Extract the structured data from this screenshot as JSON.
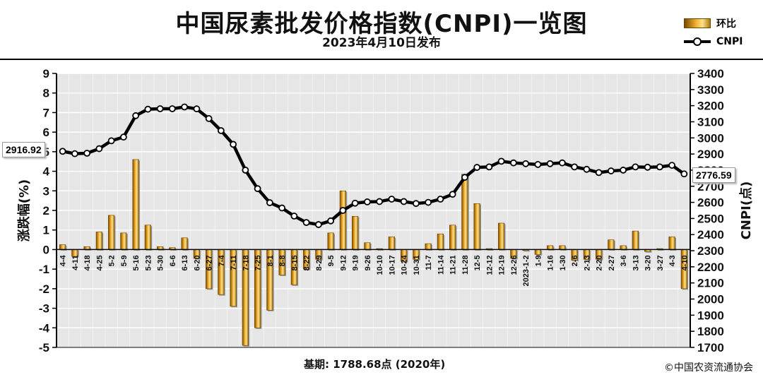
{
  "title": "中国尿素批发价格指数(CNPI)一览图",
  "subtitle": "2023年4月10日发布",
  "legend": {
    "bar_label": "环比",
    "line_label": "CNPI"
  },
  "footer": {
    "base": "基期:   1788.68点  (2020年)",
    "copyright": "©中国农资流通协会"
  },
  "callouts": {
    "first": "2916.92",
    "last": "2776.59"
  },
  "colors": {
    "bar": "#e8a020",
    "line": "#000000",
    "plot_bg": "#e6e6e6"
  },
  "chart_data": {
    "type": "bar+line",
    "x_labels": [
      "4-4",
      "4-11",
      "4-18",
      "4-25",
      "5-2",
      "5-9",
      "5-16",
      "5-23",
      "5-30",
      "6-6",
      "6-13",
      "6-20",
      "6-27",
      "7-4",
      "7-11",
      "7-18",
      "7-25",
      "8-1",
      "8-8",
      "8-15",
      "8-22",
      "8-29",
      "9-5",
      "9-12",
      "9-19",
      "9-26",
      "10-10",
      "10-17",
      "10-24",
      "10-31",
      "11-7",
      "11-14",
      "11-21",
      "11-28",
      "12-5",
      "12-12",
      "12-19",
      "12-26",
      "2023-1-2",
      "1-9",
      "1-16",
      "1-30",
      "2-6",
      "2-13",
      "2-20",
      "2-27",
      "3-6",
      "3-13",
      "3-20",
      "3-27",
      "4-3",
      "4-10"
    ],
    "series": [
      {
        "name": "环比",
        "type": "bar",
        "axis": "left",
        "values": [
          0.25,
          -0.35,
          0.15,
          0.9,
          1.75,
          0.85,
          4.6,
          1.25,
          0.15,
          0.1,
          0.6,
          -0.45,
          -2.0,
          -2.3,
          -2.9,
          -4.9,
          -4.0,
          -3.1,
          -1.3,
          -1.8,
          -1.0,
          -0.5,
          0.85,
          3.0,
          1.7,
          0.35,
          0.05,
          0.65,
          -0.6,
          -0.5,
          0.3,
          0.8,
          1.25,
          3.85,
          2.35,
          0.05,
          1.35,
          -0.45,
          -0.05,
          -0.25,
          0.2,
          0.2,
          -0.55,
          -0.5,
          -0.5,
          0.5,
          0.2,
          0.95,
          -0.1,
          0.05,
          0.65,
          -2.0
        ]
      },
      {
        "name": "CNPI",
        "type": "line",
        "axis": "right",
        "values": [
          2916.92,
          2902,
          2905,
          2933,
          2982,
          3005,
          3138,
          3178,
          3181,
          3181,
          3192,
          3180,
          3120,
          3045,
          2960,
          2800,
          2685,
          2598,
          2565,
          2515,
          2475,
          2462,
          2485,
          2550,
          2595,
          2603,
          2605,
          2620,
          2605,
          2593,
          2600,
          2620,
          2650,
          2755,
          2817,
          2820,
          2855,
          2845,
          2840,
          2835,
          2840,
          2845,
          2820,
          2805,
          2785,
          2795,
          2800,
          2820,
          2818,
          2820,
          2830,
          2776.59
        ]
      }
    ],
    "y_left": {
      "label": "涨跌幅(%)",
      "min": -5,
      "max": 9,
      "step": 1
    },
    "y_right": {
      "label": "CNPI(点)",
      "min": 1700,
      "max": 3400,
      "step": 100
    },
    "grid": true,
    "legend_position": "top-right"
  }
}
